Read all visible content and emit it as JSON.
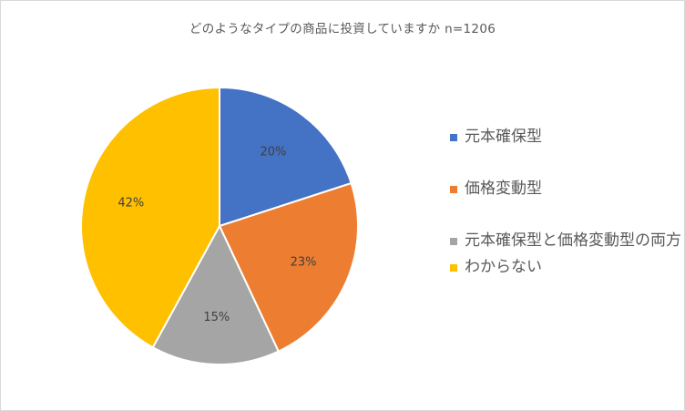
{
  "chart_data": {
    "type": "pie",
    "title": "どのようなタイプの商品に投資していますか n=1206",
    "legend_position": "right",
    "slices": [
      {
        "label": "元本確保型",
        "value": 20,
        "value_label": "20%",
        "color": "#4472C4"
      },
      {
        "label": "価格変動型",
        "value": 23,
        "value_label": "23%",
        "color": "#ED7D31"
      },
      {
        "label": "元本確保型と価格変動型の両方",
        "value": 15,
        "value_label": "15%",
        "color": "#A5A5A5"
      },
      {
        "label": "わからない",
        "value": 42,
        "value_label": "42%",
        "color": "#FFC000"
      }
    ]
  }
}
